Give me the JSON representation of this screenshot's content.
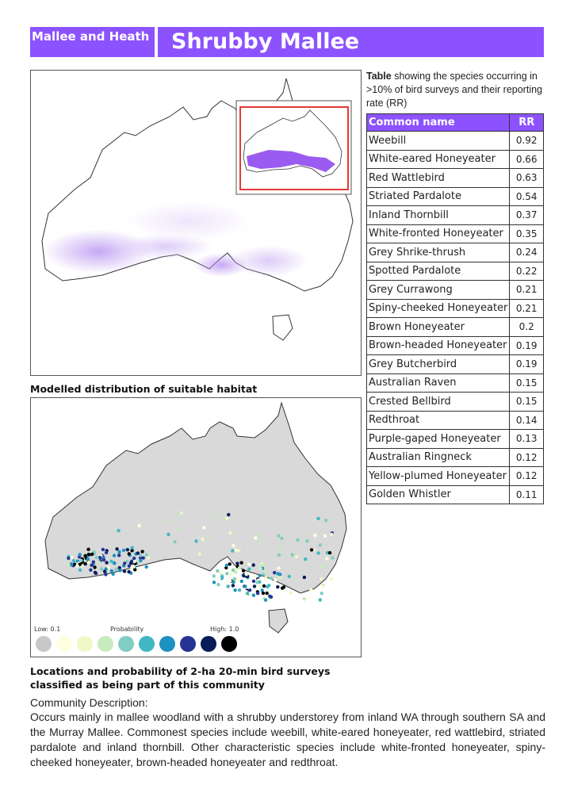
{
  "header": {
    "category": "Mallee and Heath",
    "title": "Shrubby Mallee"
  },
  "map_habitat": {
    "caption": "Modelled distribution of suitable habitat"
  },
  "map_surveys": {
    "caption": "Locations and probability of 2-ha 20-min bird surveys classified as being part of this community",
    "legend": {
      "low_label": "Low: 0.1",
      "mid_label": "Probability",
      "high_label": "High: 1.0",
      "colors": [
        "#c8c8c8",
        "#ffffe0",
        "#eef8c8",
        "#c8eac0",
        "#80cdc1",
        "#41b6c4",
        "#1d91c0",
        "#253494",
        "#081d58",
        "#000000"
      ]
    }
  },
  "table": {
    "intro_bold": "Table",
    "intro_rest": " showing the species occurring in >10% of bird surveys and their reporting rate (RR)",
    "col_name": "Common name",
    "col_rr": "RR",
    "rows": [
      {
        "name": "Weebill",
        "rr": "0.92"
      },
      {
        "name": "White-eared Honeyeater",
        "rr": "0.66"
      },
      {
        "name": "Red Wattlebird",
        "rr": "0.63"
      },
      {
        "name": "Striated Pardalote",
        "rr": "0.54"
      },
      {
        "name": "Inland Thornbill",
        "rr": "0.37"
      },
      {
        "name": "White-fronted Honeyeater",
        "rr": "0.35"
      },
      {
        "name": "Grey Shrike-thrush",
        "rr": "0.24"
      },
      {
        "name": "Spotted Pardalote",
        "rr": "0.22"
      },
      {
        "name": "Grey Currawong",
        "rr": "0.21"
      },
      {
        "name": "Spiny-cheeked Honeyeater",
        "rr": "0.21"
      },
      {
        "name": "Brown Honeyeater",
        "rr": "0.2"
      },
      {
        "name": "Brown-headed Honeyeater",
        "rr": "0.19"
      },
      {
        "name": "Grey Butcherbird",
        "rr": "0.19"
      },
      {
        "name": "Australian Raven",
        "rr": "0.15"
      },
      {
        "name": "Crested Bellbird",
        "rr": "0.15"
      },
      {
        "name": "Redthroat",
        "rr": "0.14"
      },
      {
        "name": "Purple-gaped Honeyeater",
        "rr": "0.13"
      },
      {
        "name": "Australian Ringneck",
        "rr": "0.12"
      },
      {
        "name": "Yellow-plumed Honeyeater",
        "rr": "0.12"
      },
      {
        "name": "Golden Whistler",
        "rr": "0.11"
      }
    ]
  },
  "description": {
    "title": "Community Description:",
    "text": "Occurs mainly in mallee woodland with a shrubby understorey from inland WA through southern SA and the Murray Mallee. Commonest species include weebill, white-eared honeyeater, red wattlebird, striated pardalote and inland thornbill. Other characteristic species include white-fronted honeyeater, spiny-cheeked honeyeater, brown-headed honeyeater and redthroat."
  }
}
